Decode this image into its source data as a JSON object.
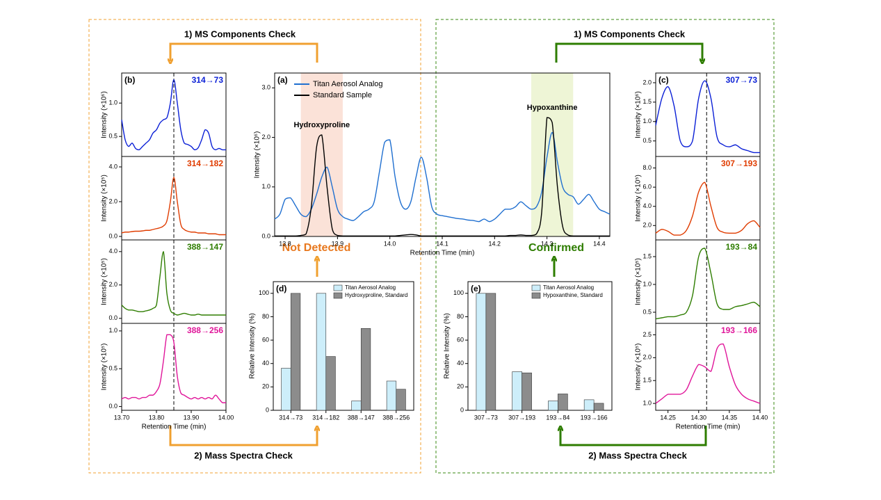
{
  "diagram": {
    "left": {
      "top": "1) MS Components Check",
      "bottom": "2) Mass Spectra Check",
      "verdict": "Not Detected"
    },
    "right": {
      "top": "1) MS Components Check",
      "bottom": "2) Mass Spectra Check",
      "verdict": "Confirmed"
    }
  },
  "chart_data": [
    {
      "type": "line",
      "panel": "(a)",
      "xlabel": "Retention Time (min)",
      "ylabel": "Intensity (×10⁶)",
      "legend": "upper left",
      "x": [
        13.78,
        13.79,
        13.8,
        13.81,
        13.82,
        13.83,
        13.84,
        13.85,
        13.86,
        13.87,
        13.88,
        13.89,
        13.9,
        13.91,
        13.92,
        13.93,
        13.94,
        13.95,
        13.96,
        13.97,
        13.98,
        13.99,
        14.0,
        14.01,
        14.02,
        14.03,
        14.04,
        14.05,
        14.06,
        14.07,
        14.08,
        14.09,
        14.1,
        14.11,
        14.12,
        14.13,
        14.14,
        14.15,
        14.16,
        14.17,
        14.18,
        14.19,
        14.2,
        14.21,
        14.22,
        14.23,
        14.24,
        14.25,
        14.26,
        14.27,
        14.28,
        14.29,
        14.3,
        14.31,
        14.32,
        14.33,
        14.34,
        14.35,
        14.36,
        14.37,
        14.38,
        14.39,
        14.4,
        14.41,
        14.42
      ],
      "series": [
        {
          "name": "Titan Aerosol Analog",
          "color": "#1f6fd0",
          "values": [
            0.35,
            0.45,
            0.75,
            0.78,
            0.62,
            0.45,
            0.4,
            0.55,
            0.85,
            1.2,
            1.4,
            1.0,
            0.55,
            0.4,
            0.35,
            0.32,
            0.4,
            0.5,
            0.55,
            0.7,
            1.3,
            1.9,
            1.95,
            1.2,
            0.7,
            0.55,
            0.7,
            1.2,
            1.6,
            1.2,
            0.6,
            0.45,
            0.42,
            0.4,
            0.38,
            0.36,
            0.35,
            0.33,
            0.32,
            0.3,
            0.35,
            0.3,
            0.35,
            0.45,
            0.55,
            0.55,
            0.6,
            0.7,
            0.62,
            0.55,
            0.6,
            0.9,
            1.6,
            2.1,
            1.5,
            1.0,
            0.85,
            0.8,
            0.65,
            0.75,
            0.85,
            0.7,
            0.55,
            0.5,
            0.45
          ]
        },
        {
          "name": "Standard Sample",
          "color": "#000000",
          "values": [
            0.01,
            0.01,
            0.01,
            0.01,
            0.01,
            0.02,
            0.05,
            0.6,
            1.8,
            2.05,
            1.0,
            0.15,
            0.02,
            0.01,
            0.01,
            0.01,
            0.01,
            0.01,
            0.01,
            0.01,
            0.01,
            0.01,
            0.01,
            0.01,
            0.02,
            0.03,
            0.04,
            0.03,
            0.01,
            0.01,
            0.01,
            0.01,
            0.01,
            0.01,
            0.01,
            0.01,
            0.01,
            0.01,
            0.01,
            0.01,
            0.01,
            0.01,
            0.01,
            0.01,
            0.01,
            0.02,
            0.02,
            0.03,
            0.02,
            0.02,
            0.05,
            0.5,
            2.4,
            2.3,
            1.0,
            0.2,
            0.03,
            0.01,
            0.01,
            0.01,
            0.01,
            0.01,
            0.01,
            0.01,
            0.01
          ]
        }
      ],
      "highlights": [
        {
          "x0": 13.83,
          "x1": 13.91,
          "color": "#fbe2d8",
          "label": "Hydroxyproline"
        },
        {
          "x0": 14.27,
          "x1": 14.35,
          "color": "#eef5d6",
          "label": "Hypoxanthine"
        }
      ],
      "xlim": [
        13.78,
        14.42
      ],
      "xticks": [
        13.8,
        13.9,
        {
          "value": 14.0,
          "label": "14.0"
        },
        14.1,
        14.2,
        14.3,
        14.4
      ],
      "ylim": [
        0,
        3.3
      ],
      "yticks": [
        {
          "value": 0,
          "label": "0.0"
        },
        {
          "value": 1,
          "label": "1.0"
        },
        {
          "value": 2,
          "label": "2.0"
        },
        {
          "value": 3,
          "label": "3.0"
        }
      ]
    },
    {
      "type": "line",
      "panel": "(b)",
      "ylabel": "Intensity (×10⁶)",
      "marker_x": 13.85,
      "x": [
        13.7,
        13.71,
        13.72,
        13.73,
        13.74,
        13.75,
        13.76,
        13.77,
        13.78,
        13.79,
        13.8,
        13.81,
        13.82,
        13.83,
        13.84,
        13.85,
        13.86,
        13.87,
        13.88,
        13.89,
        13.9,
        13.91,
        13.92,
        13.93,
        13.94,
        13.95,
        13.96,
        13.97,
        13.98,
        13.99,
        14.0
      ],
      "series": [
        {
          "name": "314→73",
          "color": "#0a1fd6",
          "values": [
            0.75,
            0.45,
            0.35,
            0.4,
            0.32,
            0.3,
            0.35,
            0.4,
            0.45,
            0.55,
            0.6,
            0.7,
            0.75,
            0.78,
            1.0,
            1.35,
            1.0,
            0.6,
            0.4,
            0.38,
            0.35,
            0.3,
            0.33,
            0.45,
            0.6,
            0.55,
            0.35,
            0.3,
            0.32,
            0.3,
            0.3
          ]
        }
      ],
      "xlim": [
        13.7,
        14.0
      ],
      "ylim": [
        0.2,
        1.45
      ],
      "yticks": [
        0.5,
        {
          "value": 1,
          "label": "1.0"
        }
      ]
    },
    {
      "type": "line",
      "ylabel": "Intensity (×10⁵)",
      "marker_x": 13.85,
      "x": [
        13.7,
        13.71,
        13.72,
        13.73,
        13.74,
        13.75,
        13.76,
        13.77,
        13.78,
        13.79,
        13.8,
        13.81,
        13.82,
        13.83,
        13.84,
        13.85,
        13.86,
        13.87,
        13.88,
        13.89,
        13.9,
        13.91,
        13.92,
        13.93,
        13.94,
        13.95,
        13.96,
        13.97,
        13.98,
        13.99,
        14.0
      ],
      "series": [
        {
          "name": "314→182",
          "color": "#e03c00",
          "values": [
            0.2,
            0.25,
            0.25,
            0.28,
            0.3,
            0.3,
            0.32,
            0.35,
            0.35,
            0.4,
            0.45,
            0.5,
            0.6,
            0.9,
            2.0,
            3.4,
            2.0,
            0.7,
            0.4,
            0.3,
            0.25,
            0.25,
            0.2,
            0.2,
            0.2,
            0.15,
            0.15,
            0.15,
            0.1,
            0.1,
            0.1
          ]
        }
      ],
      "xlim": [
        13.7,
        14.0
      ],
      "ylim": [
        -0.2,
        4.6
      ],
      "yticks": [
        {
          "value": 0,
          "label": "0.0"
        },
        {
          "value": 2,
          "label": "2.0"
        },
        {
          "value": 4,
          "label": "4.0"
        }
      ]
    },
    {
      "type": "line",
      "ylabel": "Intensity (×10⁵)",
      "marker_x": 13.85,
      "x": [
        13.7,
        13.71,
        13.72,
        13.73,
        13.74,
        13.75,
        13.76,
        13.77,
        13.78,
        13.79,
        13.8,
        13.81,
        13.82,
        13.83,
        13.84,
        13.85,
        13.86,
        13.87,
        13.88,
        13.89,
        13.9,
        13.91,
        13.92,
        13.93,
        13.94,
        13.95,
        13.96,
        13.97,
        13.98,
        13.99,
        14.0
      ],
      "series": [
        {
          "name": "388→147",
          "color": "#2e7d00",
          "values": [
            0.8,
            0.6,
            0.5,
            0.5,
            0.45,
            0.4,
            0.4,
            0.45,
            0.5,
            0.6,
            0.8,
            2.5,
            4.0,
            1.5,
            0.5,
            0.3,
            0.2,
            0.25,
            0.3,
            0.25,
            0.2,
            0.2,
            0.25,
            0.2,
            0.2,
            0.2,
            0.2,
            0.2,
            0.2,
            0.2,
            0.2
          ]
        }
      ],
      "xlim": [
        13.7,
        14.0
      ],
      "ylim": [
        -0.3,
        4.7
      ],
      "yticks": [
        {
          "value": 0,
          "label": "0.0"
        },
        {
          "value": 2,
          "label": "2.0"
        },
        {
          "value": 4,
          "label": "4.0"
        }
      ]
    },
    {
      "type": "line",
      "ylabel": "Intensity (×10⁵)",
      "xlabel": "Retention Time (min)",
      "marker_x": 13.85,
      "x": [
        13.7,
        13.71,
        13.72,
        13.73,
        13.74,
        13.75,
        13.76,
        13.77,
        13.78,
        13.79,
        13.8,
        13.81,
        13.82,
        13.83,
        13.84,
        13.85,
        13.86,
        13.87,
        13.88,
        13.89,
        13.9,
        13.91,
        13.92,
        13.93,
        13.94,
        13.95,
        13.96,
        13.97,
        13.98,
        13.99,
        14.0
      ],
      "series": [
        {
          "name": "388→256",
          "color": "#e0169a",
          "values": [
            0.1,
            0.12,
            0.1,
            0.12,
            0.12,
            0.1,
            0.12,
            0.12,
            0.15,
            0.15,
            0.2,
            0.3,
            0.6,
            0.95,
            0.95,
            0.85,
            0.4,
            0.18,
            0.15,
            0.12,
            0.1,
            0.12,
            0.1,
            0.12,
            0.1,
            0.12,
            0.1,
            0.15,
            0.1,
            0.05,
            0.05
          ]
        }
      ],
      "xlim": [
        13.7,
        14.0
      ],
      "xticks": [
        {
          "value": 13.7,
          "label": "13.70"
        },
        {
          "value": 13.8,
          "label": "13.80"
        },
        {
          "value": 13.9,
          "label": "13.90"
        },
        {
          "value": 14.0,
          "label": "14.00"
        }
      ],
      "ylim": [
        -0.05,
        1.1
      ],
      "yticks": [
        {
          "value": 0,
          "label": "0.0"
        },
        0.5,
        {
          "value": 1,
          "label": "1.0"
        }
      ]
    },
    {
      "type": "line",
      "panel": "(c)",
      "ylabel": "Intensity (×10⁶)",
      "marker_x": 14.313,
      "x": [
        14.23,
        14.24,
        14.25,
        14.26,
        14.27,
        14.28,
        14.29,
        14.3,
        14.31,
        14.32,
        14.33,
        14.34,
        14.35,
        14.36,
        14.37,
        14.38,
        14.39,
        14.4
      ],
      "series": [
        {
          "name": "307→73",
          "color": "#0a1fd6",
          "values": [
            0.9,
            1.6,
            1.9,
            1.4,
            0.5,
            0.35,
            0.5,
            1.6,
            2.05,
            1.6,
            0.6,
            0.4,
            0.35,
            0.4,
            0.3,
            0.25,
            0.2,
            0.2
          ]
        }
      ],
      "xlim": [
        14.23,
        14.4
      ],
      "ylim": [
        0.1,
        2.25
      ],
      "yticks": [
        0.5,
        {
          "value": 1,
          "label": "1.0"
        },
        1.5,
        {
          "value": 2,
          "label": "2.0"
        }
      ]
    },
    {
      "type": "line",
      "ylabel": "Intensity (×10⁵)",
      "marker_x": 14.313,
      "x": [
        14.23,
        14.24,
        14.25,
        14.26,
        14.27,
        14.28,
        14.29,
        14.3,
        14.31,
        14.32,
        14.33,
        14.34,
        14.35,
        14.36,
        14.37,
        14.38,
        14.39,
        14.4
      ],
      "series": [
        {
          "name": "307→193",
          "color": "#e03c00",
          "values": [
            1.2,
            1.6,
            1.4,
            1.0,
            1.0,
            1.5,
            3.0,
            5.5,
            6.5,
            4.0,
            1.8,
            1.3,
            1.2,
            1.2,
            1.5,
            2.2,
            2.5,
            1.8
          ]
        }
      ],
      "xlim": [
        14.23,
        14.4
      ],
      "ylim": [
        0.5,
        9.2
      ],
      "yticks": [
        {
          "value": 2,
          "label": "2.0"
        },
        {
          "value": 4,
          "label": "4.0"
        },
        {
          "value": 6,
          "label": "6.0"
        },
        {
          "value": 8,
          "label": "8.0"
        }
      ]
    },
    {
      "type": "line",
      "ylabel": "Intensity (×10⁵)",
      "marker_x": 14.313,
      "x": [
        14.23,
        14.24,
        14.25,
        14.26,
        14.27,
        14.28,
        14.29,
        14.3,
        14.31,
        14.32,
        14.33,
        14.34,
        14.35,
        14.36,
        14.37,
        14.38,
        14.39,
        14.4
      ],
      "series": [
        {
          "name": "193→84",
          "color": "#2e7d00",
          "values": [
            0.38,
            0.4,
            0.42,
            0.42,
            0.45,
            0.5,
            0.8,
            1.5,
            1.65,
            1.2,
            0.65,
            0.55,
            0.55,
            0.6,
            0.62,
            0.65,
            0.68,
            0.6
          ]
        }
      ],
      "xlim": [
        14.23,
        14.4
      ],
      "ylim": [
        0.3,
        1.8
      ],
      "yticks": [
        0.5,
        {
          "value": 1,
          "label": "1.0"
        },
        1.5
      ]
    },
    {
      "type": "line",
      "ylabel": "Intensity (×10⁵)",
      "xlabel": "Retention Time (min)",
      "marker_x": 14.313,
      "x": [
        14.23,
        14.24,
        14.25,
        14.26,
        14.27,
        14.28,
        14.29,
        14.3,
        14.31,
        14.32,
        14.33,
        14.34,
        14.35,
        14.36,
        14.37,
        14.38,
        14.39,
        14.4
      ],
      "series": [
        {
          "name": "193→166",
          "color": "#e0169a",
          "values": [
            1.0,
            1.1,
            1.2,
            1.2,
            1.2,
            1.3,
            1.6,
            1.85,
            1.8,
            1.7,
            2.2,
            2.3,
            1.8,
            1.4,
            1.2,
            1.1,
            1.05,
            1.0
          ]
        }
      ],
      "xlim": [
        14.23,
        14.4
      ],
      "xticks": [
        14.25,
        {
          "value": 14.3,
          "label": "14.30"
        },
        14.35,
        {
          "value": 14.4,
          "label": "14.40"
        }
      ],
      "ylim": [
        0.85,
        2.75
      ],
      "yticks": [
        {
          "value": 1,
          "label": "1.0"
        },
        1.5,
        {
          "value": 2,
          "label": "2.0"
        },
        2.5
      ]
    },
    {
      "type": "bar",
      "panel": "(d)",
      "ylabel": "Relative Intensity (%)",
      "legend": "upper right",
      "categories": [
        "314→73",
        "314→182",
        "388→147",
        "388→256"
      ],
      "series": [
        {
          "name": "Titan Aerosol Analog",
          "color": "#cdeefa",
          "values": [
            36,
            100,
            8,
            25
          ]
        },
        {
          "name": "Hydroxyproline, Standard",
          "color": "#8c8c8c",
          "values": [
            100,
            46,
            70,
            18
          ]
        }
      ],
      "ylim": [
        0,
        110
      ],
      "yticks": [
        0,
        20,
        40,
        60,
        80,
        100
      ]
    },
    {
      "type": "bar",
      "panel": "(e)",
      "ylabel": "Relative Intensity (%)",
      "legend": "upper right",
      "categories": [
        "307→73",
        "307→193",
        "193→84",
        "193→166"
      ],
      "series": [
        {
          "name": "Titan Aerosol Analog",
          "color": "#cdeefa",
          "values": [
            100,
            33,
            8,
            9
          ]
        },
        {
          "name": "Hypoxanthine, Standard",
          "color": "#8c8c8c",
          "values": [
            100,
            32,
            14,
            6
          ]
        }
      ],
      "ylim": [
        0,
        110
      ],
      "yticks": [
        0,
        20,
        40,
        60,
        80,
        100
      ]
    }
  ]
}
